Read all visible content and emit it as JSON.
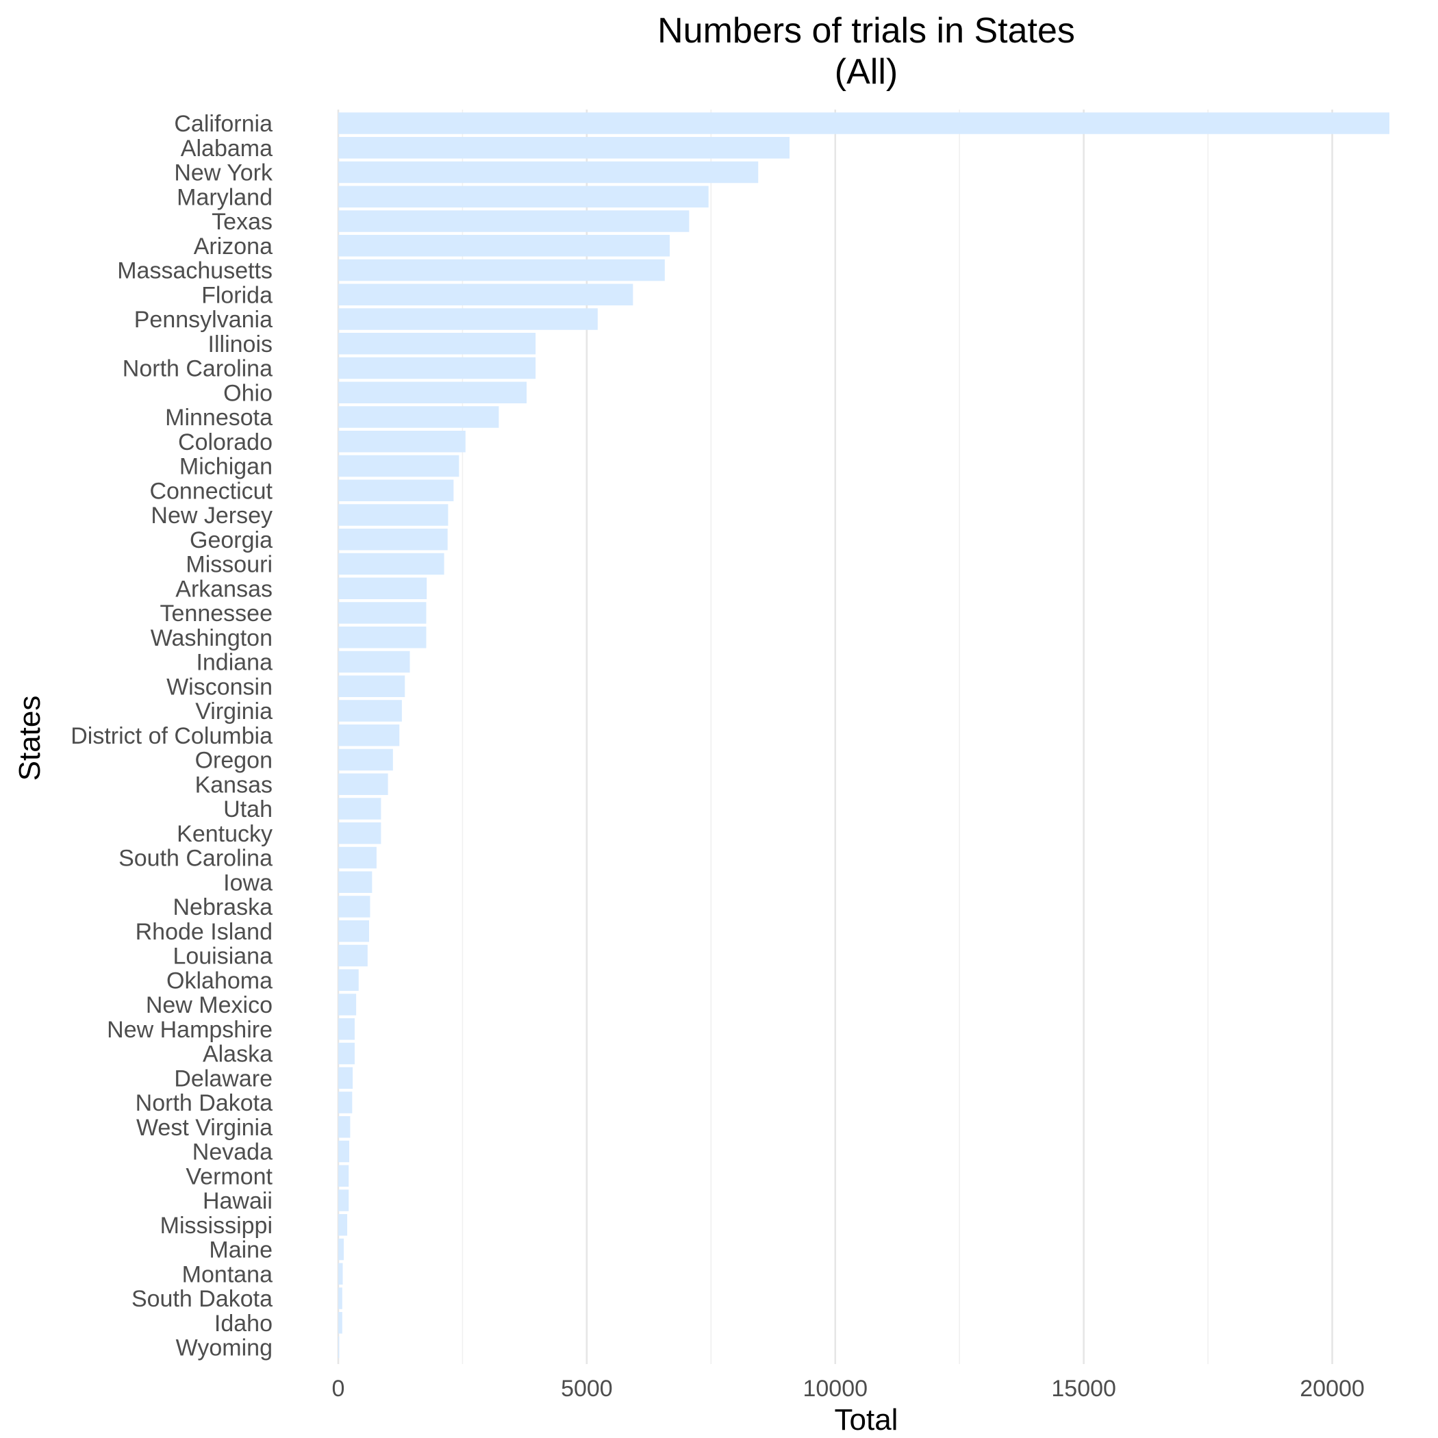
{
  "chart_data": {
    "type": "bar",
    "orientation": "horizontal",
    "title": "Numbers of trials in States",
    "subtitle": "(All)",
    "xlabel": "Total",
    "ylabel": "States",
    "xlim": [
      0,
      21500
    ],
    "x_ticks": [
      0,
      5000,
      10000,
      15000,
      20000
    ],
    "x_tick_labels": [
      "0",
      "5000",
      "10000",
      "15000",
      "20000"
    ],
    "grid": "vertical",
    "legend": "none",
    "bar_color": "#d6eaff",
    "categories": [
      "California",
      "Alabama",
      "New York",
      "Maryland",
      "Texas",
      "Arizona",
      "Massachusetts",
      "Florida",
      "Pennsylvania",
      "Illinois",
      "North Carolina",
      "Ohio",
      "Minnesota",
      "Colorado",
      "Michigan",
      "Connecticut",
      "New Jersey",
      "Georgia",
      "Missouri",
      "Arkansas",
      "Tennessee",
      "Washington",
      "Indiana",
      "Wisconsin",
      "Virginia",
      "District of Columbia",
      "Oregon",
      "Kansas",
      "Utah",
      "Kentucky",
      "South Carolina",
      "Iowa",
      "Nebraska",
      "Rhode Island",
      "Louisiana",
      "Oklahoma",
      "New Mexico",
      "New Hampshire",
      "Alaska",
      "Delaware",
      "North Dakota",
      "West Virginia",
      "Nevada",
      "Vermont",
      "Hawaii",
      "Mississippi",
      "Maine",
      "Montana",
      "South Dakota",
      "Idaho",
      "Wyoming"
    ],
    "values": [
      21150,
      9080,
      8450,
      7450,
      7060,
      6670,
      6570,
      5930,
      5220,
      3970,
      3970,
      3790,
      3230,
      2560,
      2430,
      2320,
      2210,
      2200,
      2130,
      1780,
      1770,
      1770,
      1440,
      1340,
      1280,
      1230,
      1100,
      1000,
      860,
      860,
      770,
      680,
      640,
      620,
      590,
      410,
      360,
      330,
      330,
      290,
      280,
      240,
      220,
      210,
      210,
      180,
      110,
      90,
      80,
      80,
      20
    ]
  }
}
